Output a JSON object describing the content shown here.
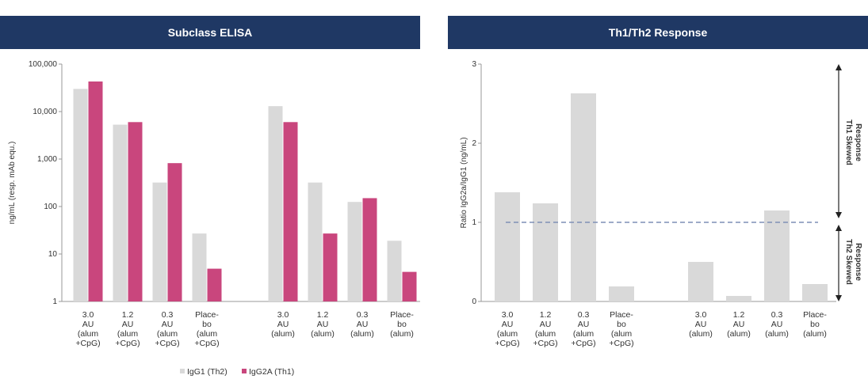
{
  "colors": {
    "header_bg": "#1f3864",
    "header_text": "#ffffff",
    "igg1": "#d9d9d9",
    "igg2a": "#c9467d",
    "ratio_bar": "#d9d9d9",
    "reference_line": "#7f8fb5"
  },
  "panels": {
    "left": {
      "header": "Subclass ELISA"
    },
    "right": {
      "header": "Th1/Th2 Response"
    }
  },
  "chart_data": [
    {
      "type": "bar",
      "title": "Subclass ELISA",
      "ylabel": "ng/mL (resp. mAb equ.)",
      "xlabel": "",
      "yscale": "log",
      "ylim": [
        1,
        100000
      ],
      "yticks": [
        "1",
        "10",
        "100",
        "1,000",
        "10,000",
        "100,000"
      ],
      "categories": [
        "3.0 AU (alum +CpG)",
        "1.2 AU (alum +CpG)",
        "0.3 AU (alum +CpG)",
        "Place-bo (alum +CpG)",
        "3.0 AU (alum)",
        "1.2 AU (alum)",
        "0.3 AU (alum)",
        "Place-bo (alum)"
      ],
      "category_lines": [
        [
          "3.0",
          "AU",
          "(alum",
          "+CpG)"
        ],
        [
          "1.2",
          "AU",
          "(alum",
          "+CpG)"
        ],
        [
          "0.3",
          "AU",
          "(alum",
          "+CpG)"
        ],
        [
          "Place-",
          "bo",
          "(alum",
          "+CpG)"
        ],
        [
          "3.0",
          "AU",
          "(alum)"
        ],
        [
          "1.2",
          "AU",
          "(alum)"
        ],
        [
          "0.3",
          "AU",
          "(alum)"
        ],
        [
          "Place-",
          "bo",
          "(alum)"
        ]
      ],
      "series": [
        {
          "name": "IgG1 (Th2)",
          "values": [
            30000,
            5300,
            320,
            27,
            13000,
            320,
            125,
            19
          ]
        },
        {
          "name": "IgG2A (Th1)",
          "values": [
            43000,
            6000,
            820,
            4.9,
            6000,
            27,
            150,
            4.2
          ]
        }
      ],
      "legend": {
        "position": "bottom",
        "entries": [
          "IgG1 (Th2)",
          "IgG2A (Th1)"
        ]
      }
    },
    {
      "type": "bar",
      "title": "Th1/Th2 Response",
      "ylabel": "Ratio IgG2a/IgG1 (ng/mL)",
      "xlabel": "",
      "ylim": [
        0,
        3
      ],
      "yticks": [
        "0",
        "1",
        "2",
        "3"
      ],
      "reference_line": 1,
      "categories": [
        "3.0 AU (alum +CpG)",
        "1.2 AU (alum +CpG)",
        "0.3 AU (alum +CpG)",
        "Place-bo (alum +CpG)",
        "3.0 AU (alum)",
        "1.2 AU (alum)",
        "0.3 AU (alum)",
        "Place-bo (alum)"
      ],
      "category_lines": [
        [
          "3.0",
          "AU",
          "(alum",
          "+CpG)"
        ],
        [
          "1.2",
          "AU",
          "(alum",
          "+CpG)"
        ],
        [
          "0.3",
          "AU",
          "(alum",
          "+CpG)"
        ],
        [
          "Place-",
          "bo",
          "(alum",
          "+CpG)"
        ],
        [
          "3.0",
          "AU",
          "(alum)"
        ],
        [
          "1.2",
          "AU",
          "(alum)"
        ],
        [
          "0.3",
          "AU",
          "(alum)"
        ],
        [
          "Place-",
          "bo",
          "(alum)"
        ]
      ],
      "values": [
        1.38,
        1.24,
        2.63,
        0.19,
        0.5,
        0.07,
        1.15,
        0.22
      ],
      "annotations": {
        "upper": [
          "Th1 Skewed",
          "Response"
        ],
        "lower": [
          "Th2 Skewed",
          "Response"
        ]
      }
    }
  ]
}
